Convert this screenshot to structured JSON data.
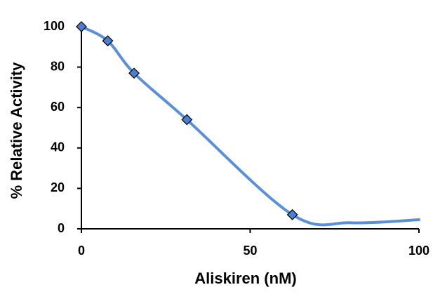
{
  "chart_data": {
    "type": "scatter",
    "x_label": "Aliskiren (nM)",
    "y_label": "% Relative Activity",
    "xlim": [
      0,
      100
    ],
    "xticks": [
      0,
      50,
      100
    ],
    "ylim": [
      0,
      100
    ],
    "yticks": [
      0,
      20,
      40,
      60,
      80,
      100
    ],
    "series": [
      {
        "color": "#5b8fd6",
        "smooth_line": true,
        "x": [
          0,
          7.8,
          15.6,
          31.25,
          62.5,
          80,
          100
        ],
        "values": [
          100,
          93,
          77,
          54,
          7,
          3,
          4.5
        ]
      },
      {
        "color": "#4a7fcf",
        "marker": "diamond",
        "x": [
          0,
          7.8,
          15.6,
          31.25,
          62.5
        ],
        "values": [
          100,
          93,
          77,
          54,
          7
        ]
      }
    ]
  }
}
